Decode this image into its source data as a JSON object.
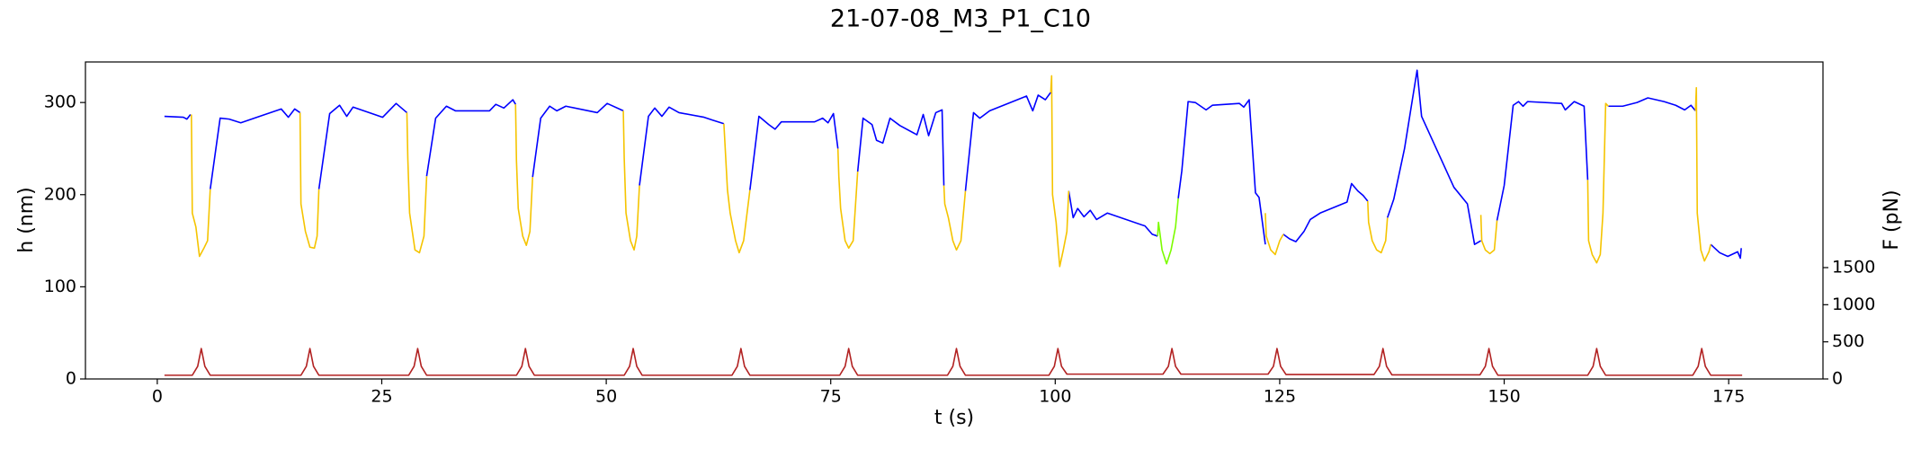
{
  "chart_data": {
    "type": "line",
    "title": "21-07-08_M3_P1_C10",
    "xlabel": "t (s)",
    "ylabel": "h (nm)",
    "y2label": "F (pN)",
    "xlim": [
      -8,
      185.5
    ],
    "xticks": [
      0,
      25,
      50,
      75,
      100,
      125,
      150,
      175
    ],
    "ylim": [
      0,
      344
    ],
    "yticks": [
      0,
      100,
      200,
      300
    ],
    "y2lim": [
      0,
      4270
    ],
    "y2ticks": [
      0,
      500,
      1000,
      1500
    ],
    "series": [
      {
        "color": "#0000ff",
        "axis": "y",
        "x": [
          0.8,
          2.9,
          3.3,
          3.7,
          null,
          5.9,
          7,
          8,
          9.3,
          13.8,
          14.6,
          15.3,
          15.9,
          null,
          18,
          19.2,
          20.3,
          21.1,
          21.8,
          25.1,
          26.6,
          27.8,
          null,
          30,
          31,
          32.2,
          33.2,
          37,
          37.7,
          38.6,
          39.6,
          39.9,
          null,
          41.8,
          42.7,
          43.7,
          44.5,
          45.5,
          49,
          50.1,
          51.9,
          null,
          53.7,
          54.7,
          55.4,
          56.2,
          57,
          58.1,
          60.9,
          61.8,
          63.1,
          null,
          66,
          67,
          68.1,
          68.8,
          69.5,
          73.2,
          74.1,
          74.7,
          75.3,
          75.8,
          null,
          78,
          78.6,
          79.6,
          80.1,
          80.8,
          81.6,
          82.7,
          84.6,
          85.3,
          85.9,
          86.7,
          87.4,
          87.6,
          null,
          90,
          90.9,
          91.6,
          92.7,
          96.8,
          97.5,
          98.1,
          98.9,
          99.5,
          null,
          101.5,
          102,
          102.5,
          103.2,
          103.9,
          104.6,
          105.8,
          110,
          110.8,
          111.4,
          null,
          113.7,
          114.1,
          114.8,
          115.6,
          116.8,
          117.5,
          120.5,
          121,
          121.6,
          122.3,
          122.7,
          123.4,
          null,
          125.4,
          126.1,
          126.8,
          127.7,
          128.4,
          129.5,
          132.5,
          133,
          133.7,
          134.3,
          134.8,
          null,
          137,
          137.7,
          138.9,
          140.3,
          140.8,
          144.4,
          145.9,
          146.7,
          147.4,
          null,
          149.2,
          150,
          151,
          151.6,
          152.1,
          152.6,
          156.4,
          156.8,
          157.8,
          158.9,
          159.3,
          null,
          161.6,
          163.2,
          164.8,
          166,
          167.8,
          169.1,
          170.1,
          170.8,
          171.3,
          null,
          173,
          174,
          174.9,
          176,
          176.3,
          176.4
        ],
        "values": [
          285,
          284,
          282,
          287,
          null,
          206,
          283,
          282,
          278,
          293,
          284,
          293,
          289,
          null,
          206,
          288,
          297,
          285,
          295,
          284,
          299,
          289,
          null,
          220,
          283,
          296,
          291,
          291,
          298,
          294,
          303,
          298,
          null,
          219,
          283,
          296,
          291,
          296,
          289,
          299,
          291,
          null,
          210,
          285,
          294,
          285,
          295,
          289,
          284,
          281,
          277,
          null,
          205,
          285,
          276,
          271,
          279,
          279,
          283,
          278,
          288,
          250,
          null,
          225,
          283,
          276,
          259,
          256,
          283,
          275,
          265,
          287,
          264,
          289,
          292,
          210,
          null,
          204,
          289,
          283,
          291,
          307,
          291,
          308,
          303,
          311,
          null,
          204,
          175,
          185,
          176,
          183,
          173,
          180,
          166,
          157,
          155,
          null,
          196,
          226,
          301,
          300,
          292,
          297,
          299,
          295,
          303,
          202,
          197,
          146,
          null,
          157,
          152,
          149,
          160,
          173,
          180,
          192,
          212,
          204,
          199,
          193,
          null,
          175,
          195,
          250,
          335,
          285,
          208,
          190,
          146,
          150,
          null,
          172,
          210,
          297,
          301,
          296,
          301,
          299,
          292,
          301,
          296,
          216,
          null,
          296,
          296,
          300,
          305,
          301,
          297,
          292,
          297,
          291,
          null,
          146,
          137,
          133,
          138,
          131,
          142
        ]
      },
      {
        "color": "#f5c400",
        "axis": "y",
        "x": [
          3.8,
          3.9,
          4.3,
          4.7,
          5.2,
          5.6,
          5.9,
          null,
          15.9,
          16,
          16.5,
          17,
          17.5,
          17.8,
          18,
          null,
          27.8,
          27.9,
          28.1,
          28.7,
          29.2,
          29.7,
          30,
          null,
          39.9,
          40,
          40.2,
          40.7,
          41.1,
          41.5,
          41.8,
          null,
          51.9,
          52,
          52.2,
          52.7,
          53.1,
          53.4,
          53.7,
          null,
          63.1,
          63.5,
          63.8,
          64.4,
          64.8,
          65.3,
          66,
          null,
          75.8,
          75.9,
          76.1,
          76.6,
          77,
          77.5,
          78,
          null,
          87.6,
          87.7,
          88.1,
          88.6,
          89,
          89.5,
          90,
          null,
          99.5,
          99.6,
          99.7,
          100.1,
          100.5,
          100.9,
          101.3,
          101.5,
          null,
          123.4,
          123.5,
          124,
          124.5,
          125,
          125.4,
          null,
          134.8,
          134.9,
          135.3,
          135.8,
          136.3,
          136.8,
          137,
          null,
          147.4,
          147.5,
          147.9,
          148.4,
          148.9,
          149.2,
          null,
          159.3,
          159.4,
          159.8,
          160.3,
          160.7,
          161,
          161.3,
          161.6,
          null,
          171.3,
          171.4,
          171.5,
          171.9,
          172.3,
          172.8,
          173
        ],
        "values": [
          287,
          180,
          165,
          133,
          142,
          150,
          206,
          null,
          289,
          190,
          160,
          143,
          142,
          155,
          206,
          null,
          289,
          240,
          180,
          140,
          137,
          155,
          220,
          null,
          298,
          237,
          185,
          155,
          145,
          160,
          219,
          null,
          291,
          240,
          180,
          150,
          140,
          155,
          210,
          null,
          277,
          205,
          180,
          150,
          137,
          150,
          205,
          null,
          250,
          220,
          185,
          150,
          142,
          150,
          225,
          null,
          210,
          190,
          175,
          150,
          140,
          150,
          204,
          null,
          311,
          329,
          200,
          170,
          122,
          140,
          160,
          204,
          null,
          180,
          155,
          140,
          135,
          150,
          157,
          null,
          193,
          170,
          150,
          140,
          137,
          150,
          175,
          null,
          178,
          150,
          140,
          136,
          140,
          172,
          null,
          216,
          150,
          135,
          126,
          135,
          180,
          299,
          296,
          null,
          291,
          316,
          180,
          140,
          128,
          138,
          146
        ]
      },
      {
        "color": "#7cfc00",
        "axis": "y",
        "x": [
          111.4,
          111.5,
          111.9,
          112.4,
          112.9,
          113.4,
          113.7
        ],
        "values": [
          155,
          170,
          140,
          125,
          140,
          165,
          196
        ]
      },
      {
        "color": "#b22222",
        "axis": "y2",
        "x": [
          0.8,
          3.9,
          4.5,
          4.9,
          5.3,
          5.9,
          16,
          16.6,
          17,
          17.4,
          18,
          28,
          28.6,
          29,
          29.4,
          30,
          40,
          40.6,
          41,
          41.4,
          42,
          52,
          52.6,
          53,
          53.4,
          54,
          64,
          64.6,
          65,
          65.4,
          66,
          76,
          76.6,
          77,
          77.4,
          78,
          88,
          88.6,
          89,
          89.4,
          90,
          99.3,
          99.9,
          100.3,
          100.7,
          101.3,
          112,
          112.6,
          113,
          113.4,
          114,
          123.7,
          124.3,
          124.7,
          125.1,
          125.7,
          135.5,
          136.1,
          136.5,
          136.9,
          137.5,
          147.3,
          147.9,
          148.3,
          148.7,
          149.3,
          159.3,
          159.9,
          160.3,
          160.7,
          161.3,
          171,
          171.6,
          172,
          172.4,
          173,
          176.5
        ],
        "values": [
          50,
          50,
          170,
          410,
          170,
          50,
          50,
          170,
          410,
          170,
          50,
          50,
          170,
          410,
          170,
          50,
          50,
          170,
          410,
          170,
          50,
          50,
          170,
          410,
          170,
          50,
          50,
          170,
          410,
          170,
          50,
          50,
          170,
          410,
          170,
          50,
          50,
          170,
          410,
          170,
          50,
          50,
          170,
          410,
          170,
          65,
          65,
          170,
          410,
          170,
          65,
          65,
          170,
          410,
          170,
          60,
          60,
          170,
          410,
          170,
          55,
          55,
          170,
          410,
          170,
          50,
          50,
          170,
          410,
          170,
          50,
          50,
          170,
          410,
          170,
          50,
          50
        ]
      }
    ]
  }
}
